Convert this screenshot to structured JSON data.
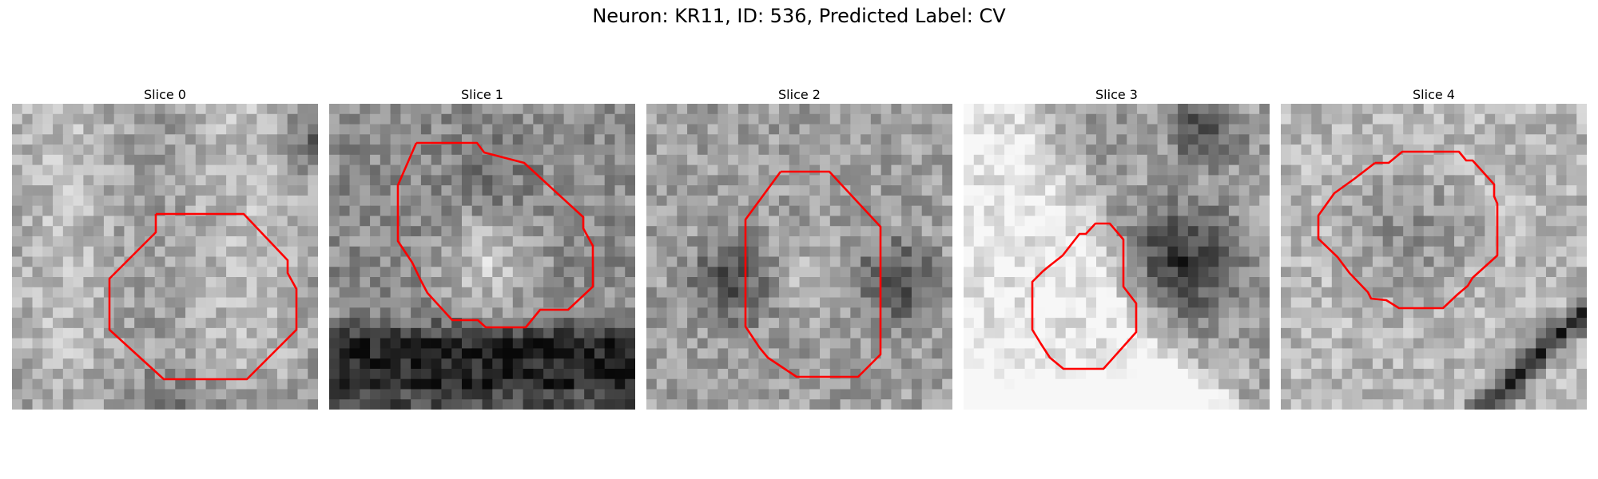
{
  "title": "Neuron: KR11, ID: 536, Predicted Label: CV",
  "outline_color": "#ff0000",
  "panels": [
    {
      "label": "Slice 0"
    },
    {
      "label": "Slice 1"
    },
    {
      "label": "Slice 2"
    },
    {
      "label": "Slice 3"
    },
    {
      "label": "Slice 4"
    }
  ]
}
